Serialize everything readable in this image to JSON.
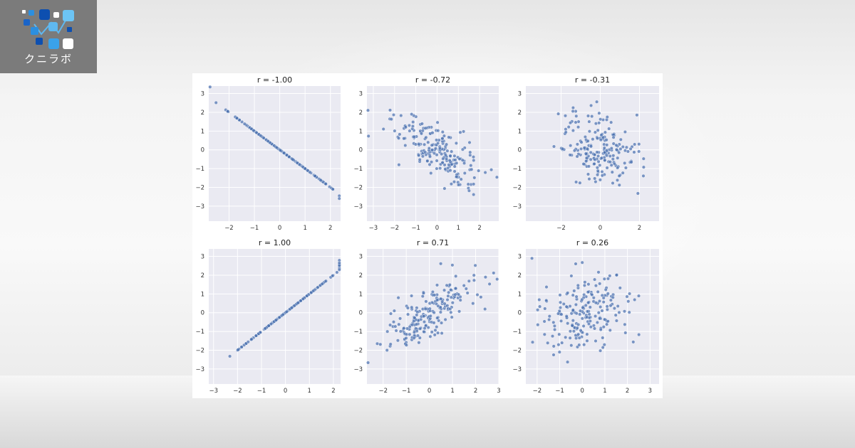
{
  "logo": {
    "text": "クニラボ"
  },
  "chart_data": [
    {
      "type": "scatter",
      "title": "r = -1.00",
      "r": -1.0,
      "n": 200,
      "xlim": [
        -2.8,
        2.4
      ],
      "ylim": [
        -3.8,
        3.4
      ],
      "xticks": [
        -2,
        -1,
        0,
        1,
        2
      ],
      "yticks": [
        -3,
        -2,
        -1,
        0,
        1,
        2,
        3
      ],
      "grid": true,
      "marker_color": "#4c72b0"
    },
    {
      "type": "scatter",
      "title": "r = -0.72",
      "r": -0.72,
      "n": 200,
      "xlim": [
        -3.3,
        2.9
      ],
      "ylim": [
        -3.8,
        3.4
      ],
      "xticks": [
        -3,
        -2,
        -1,
        0,
        1,
        2
      ],
      "yticks": [
        -3,
        -2,
        -1,
        0,
        1,
        2,
        3
      ],
      "grid": true,
      "marker_color": "#4c72b0"
    },
    {
      "type": "scatter",
      "title": "r = -0.31",
      "r": -0.31,
      "n": 200,
      "xlim": [
        -3.8,
        3.0
      ],
      "ylim": [
        -3.8,
        3.4
      ],
      "xticks": [
        -2,
        0,
        2
      ],
      "yticks": [
        -3,
        -2,
        -1,
        0,
        1,
        2,
        3
      ],
      "grid": true,
      "marker_color": "#4c72b0"
    },
    {
      "type": "scatter",
      "title": "r = 1.00",
      "r": 1.0,
      "n": 200,
      "xlim": [
        -3.2,
        2.3
      ],
      "ylim": [
        -3.8,
        3.4
      ],
      "xticks": [
        -3,
        -2,
        -1,
        0,
        1,
        2
      ],
      "yticks": [
        -3,
        -2,
        -1,
        0,
        1,
        2,
        3
      ],
      "grid": true,
      "marker_color": "#4c72b0"
    },
    {
      "type": "scatter",
      "title": "r = 0.71",
      "r": 0.71,
      "n": 200,
      "xlim": [
        -2.7,
        3.0
      ],
      "ylim": [
        -3.8,
        3.4
      ],
      "xticks": [
        -2,
        -1,
        0,
        1,
        2,
        3
      ],
      "yticks": [
        -3,
        -2,
        -1,
        0,
        1,
        2,
        3
      ],
      "grid": true,
      "marker_color": "#4c72b0"
    },
    {
      "type": "scatter",
      "title": "r = 0.26",
      "r": 0.26,
      "n": 200,
      "xlim": [
        -2.5,
        3.4
      ],
      "ylim": [
        -3.8,
        3.4
      ],
      "xticks": [
        -2,
        -1,
        0,
        1,
        2,
        3
      ],
      "yticks": [
        -3,
        -2,
        -1,
        0,
        1,
        2,
        3
      ],
      "grid": true,
      "marker_color": "#4c72b0"
    }
  ]
}
